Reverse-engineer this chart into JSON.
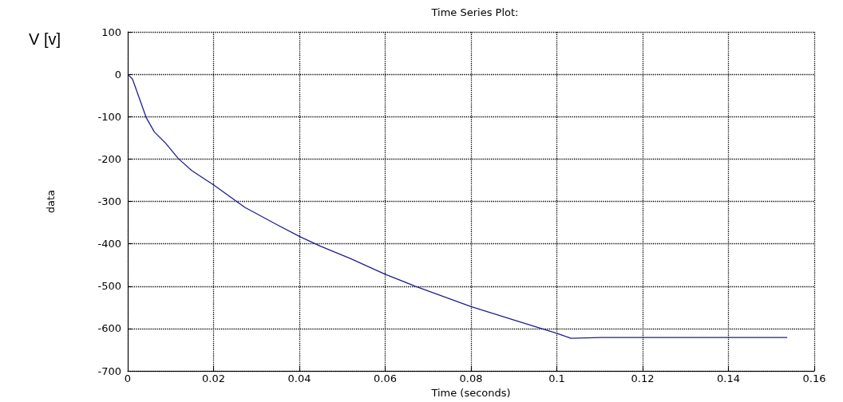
{
  "chart_data": {
    "type": "line",
    "title": "Time Series Plot:",
    "xlabel": "Time (seconds)",
    "ylabel": "data",
    "annotations": [
      "V [v]"
    ],
    "series": [
      {
        "color": "#1f1f8f",
        "x": [
          0,
          0.0011,
          0.0043,
          0.0062,
          0.0087,
          0.0118,
          0.0149,
          0.02,
          0.0273,
          0.0348,
          0.0401,
          0.0448,
          0.052,
          0.06,
          0.067,
          0.08,
          0.0907,
          0.1,
          0.1033,
          0.1104,
          0.1537
        ],
        "values": [
          0,
          -11,
          -102,
          -136,
          -161,
          -199,
          -227,
          -261,
          -314,
          -355,
          -383,
          -405,
          -435,
          -472,
          -500,
          -548,
          -582,
          -611,
          -623,
          -621,
          -621
        ]
      }
    ],
    "xlim": [
      0,
      0.16
    ],
    "xticks": [
      0,
      0.02,
      0.04,
      0.06,
      0.08,
      0.1,
      0.12,
      0.14,
      0.16
    ],
    "ylim": [
      -700,
      100
    ],
    "yticks": [
      -700,
      -600,
      -500,
      -400,
      -300,
      -200,
      -100,
      0,
      100
    ],
    "grid": true,
    "marker": "none",
    "line_style": "solid"
  }
}
